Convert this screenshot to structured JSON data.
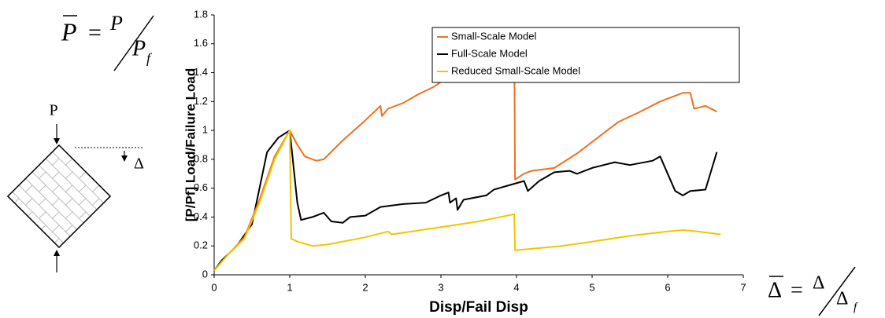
{
  "chart_data": {
    "type": "line",
    "xlabel": "Disp/Fail Disp",
    "ylabel": "[P/Pf] Load/Failure Load",
    "xlim": [
      0,
      7
    ],
    "ylim": [
      0,
      1.8
    ],
    "xticks": [
      0,
      1,
      2,
      3,
      4,
      5,
      6,
      7
    ],
    "yticks": [
      0,
      0.2,
      0.4,
      0.6,
      0.8,
      1,
      1.2,
      1.4,
      1.6,
      1.8
    ],
    "grid": false,
    "legend": "upper right",
    "series": [
      {
        "name": "Small-Scale Model",
        "color": "#f07020",
        "x": [
          0,
          0.2,
          0.4,
          0.6,
          0.8,
          1,
          1.1,
          1.2,
          1.35,
          1.45,
          1.7,
          2.0,
          2.2,
          2.22,
          2.3,
          2.5,
          2.7,
          2.9,
          3.1,
          3.2,
          3.35,
          3.5,
          3.7,
          3.85,
          3.97,
          3.98,
          4.1,
          4.2,
          4.5,
          4.8,
          5.0,
          5.2,
          5.35,
          5.6,
          5.9,
          6.2,
          6.3,
          6.35,
          6.5,
          6.65
        ],
        "values": [
          0.03,
          0.15,
          0.26,
          0.52,
          0.82,
          1.0,
          0.9,
          0.82,
          0.79,
          0.8,
          0.93,
          1.07,
          1.17,
          1.1,
          1.15,
          1.19,
          1.25,
          1.3,
          1.37,
          1.38,
          1.44,
          1.5,
          1.55,
          1.63,
          1.7,
          0.66,
          0.7,
          0.72,
          0.74,
          0.84,
          0.92,
          1.0,
          1.06,
          1.12,
          1.2,
          1.26,
          1.26,
          1.15,
          1.17,
          1.13
        ]
      },
      {
        "name": "Full-Scale Model",
        "color": "#000000",
        "x": [
          0,
          0.1,
          0.3,
          0.5,
          0.6,
          0.7,
          0.85,
          1,
          1.1,
          1.15,
          1.3,
          1.45,
          1.55,
          1.7,
          1.8,
          2.0,
          2.2,
          2.5,
          2.8,
          3.0,
          3.1,
          3.12,
          3.2,
          3.22,
          3.3,
          3.6,
          3.7,
          3.9,
          4.1,
          4.15,
          4.3,
          4.5,
          4.7,
          4.8,
          5.0,
          5.3,
          5.5,
          5.8,
          5.9,
          6.0,
          6.1,
          6.2,
          6.3,
          6.5,
          6.65
        ],
        "values": [
          0.03,
          0.1,
          0.2,
          0.35,
          0.6,
          0.85,
          0.95,
          1.0,
          0.5,
          0.38,
          0.4,
          0.43,
          0.37,
          0.36,
          0.4,
          0.41,
          0.47,
          0.49,
          0.5,
          0.55,
          0.57,
          0.5,
          0.53,
          0.45,
          0.52,
          0.55,
          0.59,
          0.62,
          0.65,
          0.58,
          0.65,
          0.71,
          0.72,
          0.7,
          0.74,
          0.78,
          0.76,
          0.79,
          0.82,
          0.7,
          0.58,
          0.55,
          0.58,
          0.59,
          0.85
        ]
      },
      {
        "name": "Reduced Small-Scale Model",
        "color": "#f5c400",
        "x": [
          0,
          0.2,
          0.4,
          0.6,
          0.8,
          1,
          1.02,
          1.1,
          1.3,
          1.5,
          2.0,
          2.3,
          2.35,
          3.0,
          3.5,
          3.97,
          3.98,
          4.2,
          4.6,
          5.0,
          5.5,
          6.0,
          6.2,
          6.4,
          6.7
        ],
        "values": [
          0.03,
          0.15,
          0.25,
          0.5,
          0.8,
          1.0,
          0.25,
          0.23,
          0.2,
          0.21,
          0.26,
          0.3,
          0.28,
          0.33,
          0.37,
          0.42,
          0.17,
          0.18,
          0.2,
          0.23,
          0.27,
          0.3,
          0.31,
          0.3,
          0.28
        ]
      }
    ]
  },
  "diagram": {
    "load_label": "P",
    "disp_label": "Δ"
  },
  "formulas": {
    "load": {
      "lhs": "P",
      "eq": "=",
      "num": "P",
      "den": "P",
      "sub": "f"
    },
    "disp": {
      "lhs": "Δ",
      "eq": "=",
      "num": "Δ",
      "den": "Δ",
      "sub": "f"
    }
  }
}
